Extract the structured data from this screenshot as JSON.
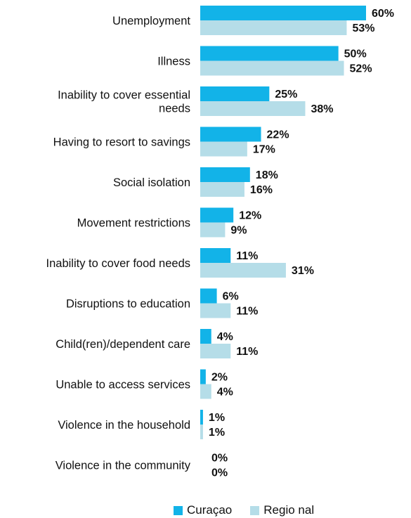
{
  "chart_data": {
    "type": "bar",
    "orientation": "horizontal",
    "categories": [
      [
        "Unemployment"
      ],
      [
        "Illness"
      ],
      [
        "Inability to cover essential",
        "needs"
      ],
      [
        "Having to resort to savings"
      ],
      [
        "Social isolation"
      ],
      [
        "Movement restrictions"
      ],
      [
        "Inability to cover food needs"
      ],
      [
        "Disruptions to education"
      ],
      [
        "Child(ren)/dependent care"
      ],
      [
        "Unable to access services"
      ],
      [
        "Violence in the household"
      ],
      [
        "Violence in the community"
      ]
    ],
    "series": [
      {
        "name": "Curaçao",
        "color": "#12b3e8",
        "values": [
          60,
          50,
          25,
          22,
          18,
          12,
          11,
          6,
          4,
          2,
          1,
          0
        ],
        "labels": [
          "60%",
          "50%",
          "25%",
          "22%",
          "18%",
          "12%",
          "11%",
          "6%",
          "4%",
          "2%",
          "1%",
          "0%"
        ]
      },
      {
        "name": "Regional",
        "color": "#b5dde8",
        "values": [
          53,
          52,
          38,
          17,
          16,
          9,
          31,
          11,
          11,
          4,
          1,
          0
        ],
        "labels": [
          "53%",
          "52%",
          "38%",
          "17%",
          "16%",
          "9%",
          "31%",
          "11%",
          "11%",
          "4%",
          "1%",
          "0%"
        ]
      }
    ],
    "xlim": [
      0,
      60
    ],
    "unit": "%",
    "grid": false,
    "legend_position": "bottom"
  },
  "legend": {
    "curacao": "Curaçao",
    "regional": "Regio nal"
  }
}
